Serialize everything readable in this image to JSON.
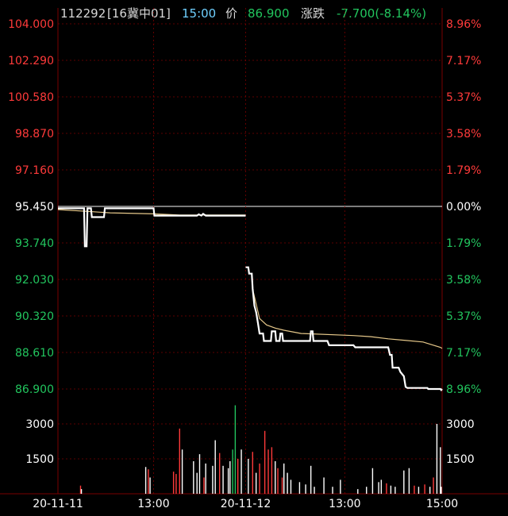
{
  "header": {
    "code": "112292",
    "name": "[16冀中01]",
    "time": "15:00",
    "price_label": "价",
    "price": "86.900",
    "change_label": "涨跌",
    "change": "-7.700(-8.14%)"
  },
  "colors": {
    "background": "#000000",
    "grid": "#7a0000",
    "up": "#ff3a3a",
    "down": "#22c55e",
    "price_line": "#ffffff",
    "avg_line": "#e6c88a",
    "time_color": "#6fd0ff",
    "header_text": "#d8d8d8"
  },
  "chart_data": {
    "type": "line",
    "days": [
      "20-11-11",
      "20-11-12"
    ],
    "x_ticks": [
      "20-11-11",
      "13:00",
      "20-11-12",
      "13:00",
      "15:00"
    ],
    "price_axis": {
      "ylim": [
        86.9,
        104.0
      ],
      "prev_close": 95.45,
      "left_ticks": [
        "104.000",
        "102.290",
        "100.580",
        "98.870",
        "97.160",
        "95.450",
        "93.740",
        "92.030",
        "90.320",
        "88.610",
        "86.900"
      ],
      "right_ticks": [
        "8.96%",
        "7.17%",
        "5.37%",
        "3.58%",
        "1.79%",
        "0.00%",
        "1.79%",
        "3.58%",
        "5.37%",
        "7.17%",
        "8.96%"
      ]
    },
    "volume_axis": {
      "ylim": [
        0,
        4500
      ],
      "ticks": [
        "3000",
        "1500"
      ]
    },
    "series": [
      {
        "name": "price",
        "points": [
          [
            0,
            95.36
          ],
          [
            30,
            95.36
          ],
          [
            30,
            95.36
          ],
          [
            31,
            93.58
          ],
          [
            33,
            93.58
          ],
          [
            34,
            95.36
          ],
          [
            38,
            95.36
          ],
          [
            39,
            94.95
          ],
          [
            53,
            94.95
          ],
          [
            54,
            95.36
          ],
          [
            110,
            95.36
          ],
          [
            111,
            95.02
          ],
          [
            160,
            95.02
          ],
          [
            162,
            95.08
          ],
          [
            165,
            95.02
          ],
          [
            167,
            95.1
          ],
          [
            170,
            95.02
          ],
          [
            216,
            95.02
          ],
          [
            216,
            92.6
          ],
          [
            219,
            92.6
          ],
          [
            220,
            92.3
          ],
          [
            223,
            92.3
          ],
          [
            224,
            91.6
          ],
          [
            226,
            90.8
          ],
          [
            228,
            90.5
          ],
          [
            230,
            90.0
          ],
          [
            232,
            89.5
          ],
          [
            236,
            89.5
          ],
          [
            237,
            89.15
          ],
          [
            245,
            89.15
          ],
          [
            246,
            89.6
          ],
          [
            250,
            89.6
          ],
          [
            251,
            89.15
          ],
          [
            255,
            89.15
          ],
          [
            256,
            89.5
          ],
          [
            258,
            89.5
          ],
          [
            259,
            89.15
          ],
          [
            290,
            89.15
          ],
          [
            291,
            89.6
          ],
          [
            293,
            89.6
          ],
          [
            294,
            89.15
          ],
          [
            310,
            89.15
          ],
          [
            312,
            88.95
          ],
          [
            340,
            88.95
          ],
          [
            342,
            88.85
          ],
          [
            380,
            88.85
          ],
          [
            382,
            88.5
          ],
          [
            384,
            88.5
          ],
          [
            385,
            87.9
          ],
          [
            392,
            87.9
          ],
          [
            394,
            87.7
          ],
          [
            398,
            87.5
          ],
          [
            400,
            87.0
          ],
          [
            402,
            86.95
          ],
          [
            425,
            86.95
          ],
          [
            426,
            86.9
          ],
          [
            440,
            86.9
          ],
          [
            441,
            86.85
          ],
          [
            442,
            86.9
          ]
        ]
      },
      {
        "name": "average",
        "points": [
          [
            0,
            95.3
          ],
          [
            40,
            95.2
          ],
          [
            60,
            95.15
          ],
          [
            110,
            95.1
          ],
          [
            140,
            95.05
          ],
          [
            216,
            95.05
          ],
          [
            225,
            91.4
          ],
          [
            232,
            90.2
          ],
          [
            240,
            89.9
          ],
          [
            250,
            89.75
          ],
          [
            260,
            89.65
          ],
          [
            280,
            89.5
          ],
          [
            340,
            89.4
          ],
          [
            360,
            89.35
          ],
          [
            380,
            89.25
          ],
          [
            420,
            89.1
          ],
          [
            440,
            88.85
          ],
          [
            442,
            88.8
          ]
        ]
      }
    ],
    "volume": [
      [
        26,
        350,
        "up"
      ],
      [
        27,
        200,
        "down"
      ],
      [
        101,
        1150,
        "down"
      ],
      [
        104,
        1050,
        "up"
      ],
      [
        106,
        700,
        "down"
      ],
      [
        133,
        950,
        "up"
      ],
      [
        136,
        850,
        "up"
      ],
      [
        140,
        2800,
        "up"
      ],
      [
        143,
        1900,
        "down"
      ],
      [
        156,
        1400,
        "down"
      ],
      [
        160,
        900,
        "down"
      ],
      [
        163,
        1700,
        "down"
      ],
      [
        168,
        700,
        "up"
      ],
      [
        170,
        1300,
        "down"
      ],
      [
        178,
        1200,
        "down"
      ],
      [
        181,
        2300,
        "down"
      ],
      [
        186,
        1750,
        "up"
      ],
      [
        190,
        1200,
        "down"
      ],
      [
        196,
        1100,
        "down"
      ],
      [
        198,
        1400,
        "down"
      ],
      [
        201,
        1900,
        "down"
      ],
      [
        204,
        3800,
        "down"
      ],
      [
        207,
        1500,
        "up"
      ],
      [
        211,
        1900,
        "down"
      ],
      [
        219,
        1500,
        "down"
      ],
      [
        224,
        1800,
        "up"
      ],
      [
        228,
        900,
        "down"
      ],
      [
        232,
        1300,
        "up"
      ],
      [
        238,
        2700,
        "up"
      ],
      [
        242,
        1900,
        "up"
      ],
      [
        246,
        2000,
        "up"
      ],
      [
        250,
        1400,
        "down"
      ],
      [
        253,
        1100,
        "up"
      ],
      [
        258,
        700,
        "up"
      ],
      [
        260,
        1300,
        "down"
      ],
      [
        264,
        900,
        "down"
      ],
      [
        268,
        600,
        "down"
      ],
      [
        278,
        500,
        "down"
      ],
      [
        285,
        400,
        "down"
      ],
      [
        291,
        1200,
        "down"
      ],
      [
        295,
        300,
        "down"
      ],
      [
        306,
        700,
        "down"
      ],
      [
        316,
        300,
        "down"
      ],
      [
        325,
        600,
        "down"
      ],
      [
        345,
        200,
        "down"
      ],
      [
        355,
        300,
        "down"
      ],
      [
        362,
        1100,
        "down"
      ],
      [
        369,
        500,
        "down"
      ],
      [
        372,
        600,
        "down"
      ],
      [
        378,
        450,
        "up"
      ],
      [
        383,
        350,
        "down"
      ],
      [
        388,
        300,
        "down"
      ],
      [
        398,
        1000,
        "down"
      ],
      [
        404,
        1100,
        "down"
      ],
      [
        410,
        350,
        "up"
      ],
      [
        415,
        300,
        "down"
      ],
      [
        422,
        400,
        "up"
      ],
      [
        428,
        300,
        "down"
      ],
      [
        432,
        700,
        "up"
      ],
      [
        436,
        3000,
        "down"
      ],
      [
        440,
        2000,
        "down"
      ],
      [
        441,
        300,
        "down"
      ]
    ]
  }
}
